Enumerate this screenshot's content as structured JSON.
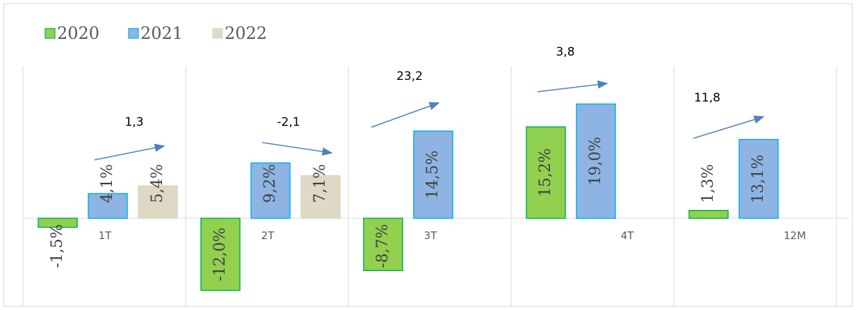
{
  "chart_data": {
    "type": "bar",
    "categories": [
      "1T",
      "2T",
      "3T",
      "4T",
      "12M"
    ],
    "series": [
      {
        "name": "2020",
        "values": [
          -1.5,
          -12.0,
          -8.7,
          15.2,
          1.3
        ],
        "labels": [
          "-1,5%",
          "-12,0%",
          "-8,7%",
          "15,2%",
          "1,3%"
        ],
        "color": "#92d050",
        "border": "#00b050"
      },
      {
        "name": "2021",
        "values": [
          4.1,
          9.2,
          14.5,
          19.0,
          13.1
        ],
        "labels": [
          "4,1%",
          "9,2%",
          "14,5%",
          "19,0%",
          "13,1%"
        ],
        "color": "#8eb4e3",
        "border": "#00b0f0"
      },
      {
        "name": "2022",
        "values": [
          5.4,
          7.1,
          null,
          null,
          null
        ],
        "labels": [
          "5,4%",
          "7,1%",
          "",
          "",
          ""
        ],
        "color": "#ddd9c4",
        "border": "#ddd9c4"
      }
    ],
    "annotations": [
      "1,3",
      "-2,1",
      "23,2",
      "3,8",
      "11,8"
    ],
    "arrow_color": "#4f81bd",
    "legend_position": "top-left",
    "grid": false,
    "vertical_separators": true,
    "title": "",
    "xlabel": "",
    "ylabel": ""
  }
}
